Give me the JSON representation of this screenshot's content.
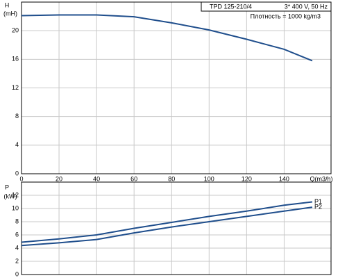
{
  "chart_data": [
    {
      "type": "line",
      "y_label": "H",
      "y_unit": "(mH)",
      "x_label": "Q(m3/h)",
      "info": [
        "TPD 125-210/4",
        "3* 400 V, 50 Hz"
      ],
      "note": "Плотность = 1000 kg/m3",
      "x": [
        0,
        20,
        40,
        60,
        80,
        100,
        120,
        140,
        155
      ],
      "series": [
        {
          "color": "#1f4e8c",
          "values": [
            22.1,
            22.2,
            22.2,
            21.95,
            21.1,
            20.1,
            18.8,
            17.4,
            15.8
          ]
        }
      ],
      "xlim": [
        0,
        165
      ],
      "xticks": [
        0,
        20,
        40,
        60,
        80,
        100,
        120,
        140
      ],
      "ylim": [
        0,
        24
      ],
      "yticks": [
        0,
        4,
        8,
        12,
        16,
        20
      ],
      "grid": true
    },
    {
      "type": "line",
      "y_label": "P",
      "y_unit": "(kW)",
      "x": [
        0,
        20,
        40,
        60,
        80,
        100,
        120,
        140,
        155
      ],
      "series": [
        {
          "name": "P1",
          "color": "#1f4e8c",
          "values": [
            4.9,
            5.4,
            6.0,
            7.0,
            7.9,
            8.8,
            9.6,
            10.5,
            11.0
          ]
        },
        {
          "name": "P2",
          "color": "#1f4e8c",
          "values": [
            4.4,
            4.8,
            5.3,
            6.3,
            7.2,
            8.0,
            8.8,
            9.6,
            10.2
          ]
        }
      ],
      "xlim": [
        0,
        165
      ],
      "ylim": [
        0,
        14
      ],
      "yticks": [
        0,
        2,
        4,
        6,
        8,
        10,
        12
      ],
      "grid": true
    }
  ]
}
